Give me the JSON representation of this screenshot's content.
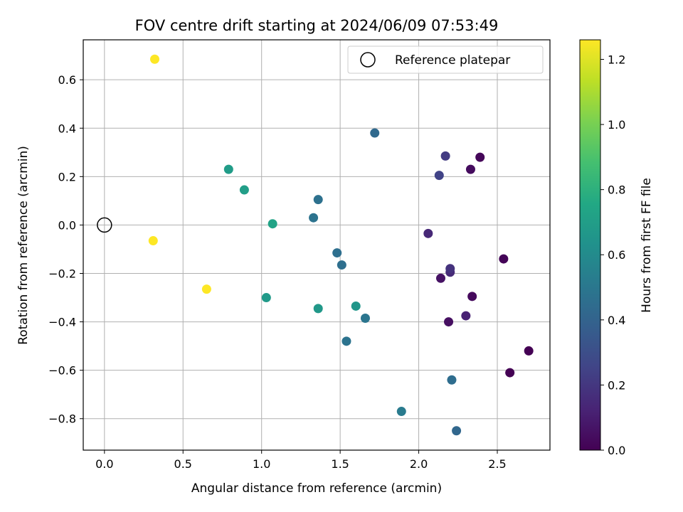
{
  "chart_data": {
    "type": "scatter",
    "title": "FOV centre drift starting at 2024/06/09 07:53:49",
    "xlabel": "Angular distance from reference (arcmin)",
    "ylabel": "Rotation from reference (arcmin)",
    "xlim": [
      -0.135,
      2.835
    ],
    "ylim": [
      -0.93,
      0.765
    ],
    "x_ticks": [
      0.0,
      0.5,
      1.0,
      1.5,
      2.0,
      2.5
    ],
    "y_ticks": [
      -0.8,
      -0.6,
      -0.4,
      -0.2,
      0.0,
      0.2,
      0.4,
      0.6
    ],
    "grid": true,
    "colorbar": {
      "label": "Hours from first FF file",
      "colormap": "viridis",
      "range": [
        0.0,
        1.26
      ],
      "ticks": [
        0.0,
        0.2,
        0.4,
        0.6,
        0.8,
        1.0,
        1.2
      ]
    },
    "reference": {
      "name": "Reference platepar",
      "x": 0.0,
      "y": 0.0,
      "legend_position": "top-right"
    },
    "points": [
      {
        "x": 2.7,
        "y": -0.52,
        "hours": 0.0
      },
      {
        "x": 2.58,
        "y": -0.61,
        "hours": 0.0
      },
      {
        "x": 2.54,
        "y": -0.14,
        "hours": 0.01
      },
      {
        "x": 2.39,
        "y": 0.28,
        "hours": 0.02
      },
      {
        "x": 2.34,
        "y": -0.295,
        "hours": 0.03
      },
      {
        "x": 2.33,
        "y": 0.23,
        "hours": 0.04
      },
      {
        "x": 2.19,
        "y": -0.4,
        "hours": 0.05
      },
      {
        "x": 2.14,
        "y": -0.22,
        "hours": 0.06
      },
      {
        "x": 2.3,
        "y": -0.375,
        "hours": 0.12
      },
      {
        "x": 2.06,
        "y": -0.035,
        "hours": 0.14
      },
      {
        "x": 2.2,
        "y": -0.195,
        "hours": 0.15
      },
      {
        "x": 2.2,
        "y": -0.18,
        "hours": 0.18
      },
      {
        "x": 2.17,
        "y": 0.285,
        "hours": 0.22
      },
      {
        "x": 2.13,
        "y": 0.205,
        "hours": 0.25
      },
      {
        "x": 2.24,
        "y": -0.85,
        "hours": 0.42
      },
      {
        "x": 1.72,
        "y": 0.38,
        "hours": 0.43
      },
      {
        "x": 2.21,
        "y": -0.64,
        "hours": 0.45
      },
      {
        "x": 1.48,
        "y": -0.115,
        "hours": 0.46
      },
      {
        "x": 1.51,
        "y": -0.165,
        "hours": 0.46
      },
      {
        "x": 1.36,
        "y": 0.105,
        "hours": 0.47
      },
      {
        "x": 1.33,
        "y": 0.03,
        "hours": 0.48
      },
      {
        "x": 1.54,
        "y": -0.48,
        "hours": 0.48
      },
      {
        "x": 1.66,
        "y": -0.385,
        "hours": 0.49
      },
      {
        "x": 1.89,
        "y": -0.77,
        "hours": 0.52
      },
      {
        "x": 1.6,
        "y": -0.335,
        "hours": 0.66
      },
      {
        "x": 1.36,
        "y": -0.345,
        "hours": 0.67
      },
      {
        "x": 1.03,
        "y": -0.3,
        "hours": 0.68
      },
      {
        "x": 0.79,
        "y": 0.23,
        "hours": 0.69
      },
      {
        "x": 0.89,
        "y": 0.145,
        "hours": 0.7
      },
      {
        "x": 1.07,
        "y": 0.005,
        "hours": 0.73
      },
      {
        "x": 0.65,
        "y": -0.265,
        "hours": 1.26
      },
      {
        "x": 0.32,
        "y": 0.685,
        "hours": 1.26
      },
      {
        "x": 0.31,
        "y": -0.065,
        "hours": 1.26
      }
    ]
  }
}
